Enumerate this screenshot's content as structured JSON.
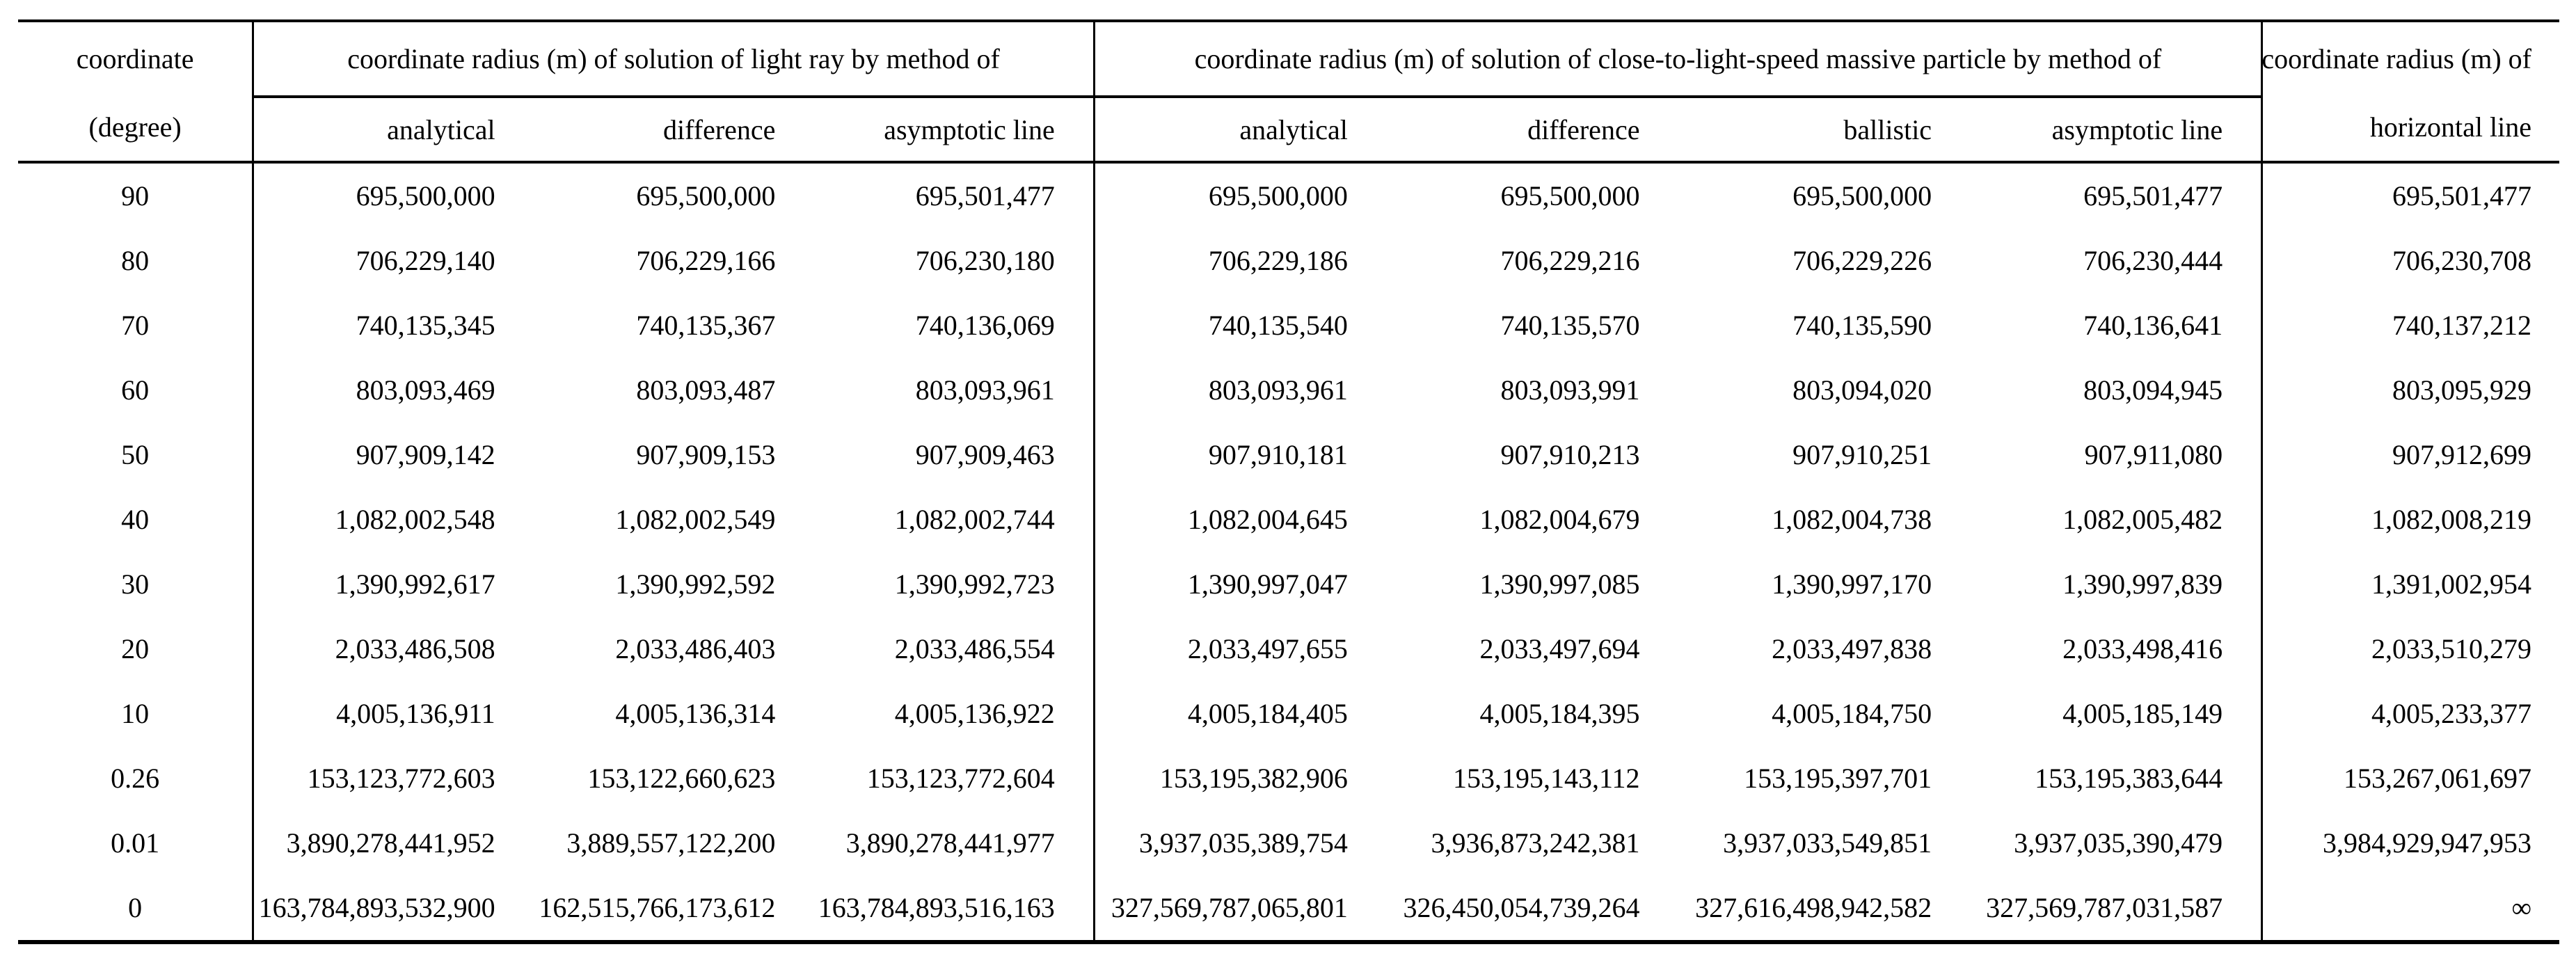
{
  "table": {
    "corner": {
      "line1": "coordinate",
      "line2": "(degree)"
    },
    "group_light": {
      "title": "coordinate radius (m) of solution of light ray by method of",
      "subcols": [
        "analytical",
        "difference",
        "asymptotic line"
      ]
    },
    "group_massive": {
      "title": "coordinate radius (m) of solution of close-to-light-speed massive particle by method of",
      "subcols": [
        "analytical",
        "difference",
        "ballistic",
        "asymptotic line"
      ]
    },
    "last_col": {
      "line1": "coordinate radius (m) of",
      "line2": "horizontal line"
    },
    "rows": [
      [
        "90",
        "695,500,000",
        "695,500,000",
        "695,501,477",
        "695,500,000",
        "695,500,000",
        "695,500,000",
        "695,501,477",
        "695,501,477"
      ],
      [
        "80",
        "706,229,140",
        "706,229,166",
        "706,230,180",
        "706,229,186",
        "706,229,216",
        "706,229,226",
        "706,230,444",
        "706,230,708"
      ],
      [
        "70",
        "740,135,345",
        "740,135,367",
        "740,136,069",
        "740,135,540",
        "740,135,570",
        "740,135,590",
        "740,136,641",
        "740,137,212"
      ],
      [
        "60",
        "803,093,469",
        "803,093,487",
        "803,093,961",
        "803,093,961",
        "803,093,991",
        "803,094,020",
        "803,094,945",
        "803,095,929"
      ],
      [
        "50",
        "907,909,142",
        "907,909,153",
        "907,909,463",
        "907,910,181",
        "907,910,213",
        "907,910,251",
        "907,911,080",
        "907,912,699"
      ],
      [
        "40",
        "1,082,002,548",
        "1,082,002,549",
        "1,082,002,744",
        "1,082,004,645",
        "1,082,004,679",
        "1,082,004,738",
        "1,082,005,482",
        "1,082,008,219"
      ],
      [
        "30",
        "1,390,992,617",
        "1,390,992,592",
        "1,390,992,723",
        "1,390,997,047",
        "1,390,997,085",
        "1,390,997,170",
        "1,390,997,839",
        "1,391,002,954"
      ],
      [
        "20",
        "2,033,486,508",
        "2,033,486,403",
        "2,033,486,554",
        "2,033,497,655",
        "2,033,497,694",
        "2,033,497,838",
        "2,033,498,416",
        "2,033,510,279"
      ],
      [
        "10",
        "4,005,136,911",
        "4,005,136,314",
        "4,005,136,922",
        "4,005,184,405",
        "4,005,184,395",
        "4,005,184,750",
        "4,005,185,149",
        "4,005,233,377"
      ],
      [
        "0.26",
        "153,123,772,603",
        "153,122,660,623",
        "153,123,772,604",
        "153,195,382,906",
        "153,195,143,112",
        "153,195,397,701",
        "153,195,383,644",
        "153,267,061,697"
      ],
      [
        "0.01",
        "3,890,278,441,952",
        "3,889,557,122,200",
        "3,890,278,441,977",
        "3,937,035,389,754",
        "3,936,873,242,381",
        "3,937,033,549,851",
        "3,937,035,390,479",
        "3,984,929,947,953"
      ],
      [
        "0",
        "163,784,893,532,900",
        "162,515,766,173,612",
        "163,784,893,516,163",
        "327,569,787,065,801",
        "326,450,054,739,264",
        "327,616,498,942,582",
        "327,569,787,031,587",
        "∞"
      ]
    ]
  }
}
